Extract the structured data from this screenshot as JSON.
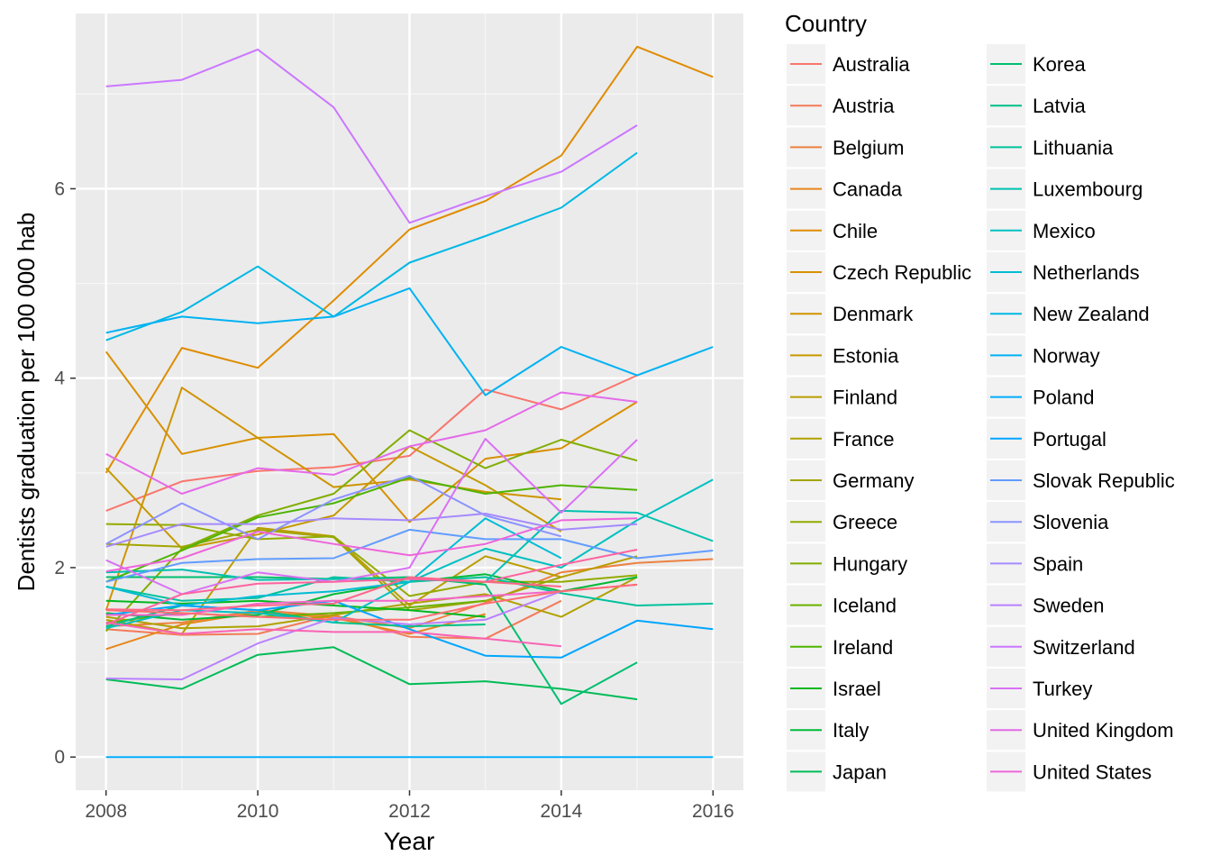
{
  "chart_data": {
    "type": "line",
    "title": "",
    "xlabel": "Year",
    "ylabel": "Dentists graduation per 100 000 hab",
    "xlim": [
      2007.6,
      2016.4
    ],
    "ylim": [
      -0.35,
      7.85
    ],
    "x_ticks": [
      2008,
      2010,
      2012,
      2014,
      2016
    ],
    "y_ticks": [
      0,
      2,
      4,
      6
    ],
    "x_tick_labels": [
      "2008",
      "2010",
      "2012",
      "2014",
      "2016"
    ],
    "y_tick_labels": [
      "0",
      "2",
      "4",
      "6"
    ],
    "grid": true,
    "legend": {
      "title": "Country",
      "placement": "right",
      "columns": 2
    },
    "x": [
      2008,
      2009,
      2010,
      2011,
      2012,
      2013,
      2014,
      2015,
      2016
    ],
    "series": [
      {
        "name": "Australia",
        "color": "#F8766D",
        "values": [
          2.6,
          2.91,
          3.02,
          3.06,
          3.18,
          3.88,
          3.67,
          4.03,
          null
        ]
      },
      {
        "name": "Austria",
        "color": "#F37B59",
        "values": [
          1.35,
          1.29,
          1.3,
          1.5,
          1.27,
          1.25,
          1.65,
          null,
          null
        ]
      },
      {
        "name": "Belgium",
        "color": "#ED8141",
        "values": [
          1.38,
          1.42,
          1.55,
          1.49,
          1.36,
          1.63,
          1.95,
          2.05,
          2.09
        ]
      },
      {
        "name": "Canada",
        "color": "#E7861B",
        "values": [
          1.14,
          1.4,
          1.53,
          1.47,
          1.3,
          1.51,
          null,
          null,
          null
        ]
      },
      {
        "name": "Chile",
        "color": "#DF8C00",
        "values": [
          3.0,
          4.32,
          4.11,
          4.82,
          5.57,
          5.87,
          6.35,
          7.5,
          7.18
        ]
      },
      {
        "name": "Czech Republic",
        "color": "#D89000",
        "values": [
          4.28,
          3.2,
          3.37,
          3.41,
          2.48,
          3.15,
          3.26,
          3.75,
          null
        ]
      },
      {
        "name": "Denmark",
        "color": "#CF9400",
        "values": [
          1.55,
          3.9,
          3.37,
          2.85,
          2.93,
          2.8,
          2.72,
          null,
          null
        ]
      },
      {
        "name": "Estonia",
        "color": "#C59900",
        "values": [
          3.05,
          2.2,
          2.35,
          2.55,
          3.28,
          2.87,
          2.38,
          null,
          null
        ]
      },
      {
        "name": "Finland",
        "color": "#BB9D00",
        "values": [
          1.45,
          1.3,
          2.42,
          2.33,
          1.6,
          2.12,
          1.9,
          2.12,
          null
        ]
      },
      {
        "name": "France",
        "color": "#B0A100",
        "values": [
          1.48,
          1.36,
          1.38,
          1.5,
          1.62,
          1.72,
          1.48,
          1.9,
          null
        ]
      },
      {
        "name": "Germany",
        "color": "#A3A500",
        "values": [
          2.25,
          2.22,
          2.4,
          2.32,
          1.55,
          1.65,
          1.9,
          null,
          null
        ]
      },
      {
        "name": "Greece",
        "color": "#93AA00",
        "values": [
          2.46,
          2.45,
          2.3,
          2.33,
          1.7,
          1.85,
          1.85,
          1.92,
          null
        ]
      },
      {
        "name": "Hungary",
        "color": "#81AD00",
        "values": [
          1.33,
          2.2,
          2.55,
          2.78,
          3.45,
          3.05,
          3.35,
          3.13,
          null
        ]
      },
      {
        "name": "Iceland",
        "color": "#6BB100",
        "values": [
          1.42,
          1.52,
          1.48,
          1.52,
          1.58,
          1.65,
          null,
          null,
          null
        ]
      },
      {
        "name": "Ireland",
        "color": "#4EB400",
        "values": [
          1.85,
          2.18,
          2.53,
          2.68,
          2.95,
          2.78,
          2.87,
          2.82,
          null
        ]
      },
      {
        "name": "Israel",
        "color": "#00B81F",
        "values": [
          1.65,
          1.62,
          1.65,
          1.6,
          1.55,
          1.48,
          null,
          null,
          null
        ]
      },
      {
        "name": "Italy",
        "color": "#00BA38",
        "values": [
          1.52,
          1.45,
          1.5,
          1.72,
          1.85,
          1.93,
          1.75,
          1.9,
          null
        ]
      },
      {
        "name": "Japan",
        "color": "#00BC56",
        "values": [
          0.82,
          0.72,
          1.08,
          1.16,
          0.77,
          0.8,
          0.72,
          0.61,
          null
        ]
      },
      {
        "name": "Korea",
        "color": "#00BE70",
        "values": [
          1.9,
          1.9,
          1.9,
          1.88,
          1.9,
          1.82,
          0.56,
          1.0,
          null
        ]
      },
      {
        "name": "Latvia",
        "color": "#00C087",
        "values": [
          1.38,
          1.6,
          1.55,
          1.42,
          1.38,
          1.4,
          null,
          null,
          null
        ]
      },
      {
        "name": "Lithuania",
        "color": "#00C19C",
        "values": [
          1.8,
          1.65,
          1.68,
          1.9,
          1.85,
          1.9,
          1.73,
          1.6,
          1.62
        ]
      },
      {
        "name": "Luxembourg",
        "color": "#00C1AF",
        "values": [
          1.95,
          1.98,
          1.87,
          1.88,
          1.88,
          1.85,
          2.6,
          2.58,
          2.28
        ]
      },
      {
        "name": "Mexico",
        "color": "#00C0C1",
        "values": [
          1.36,
          1.55,
          1.52,
          1.42,
          1.85,
          2.2,
          2.0,
          2.5,
          2.93
        ]
      },
      {
        "name": "Netherlands",
        "color": "#00BCD5",
        "values": [
          1.8,
          1.6,
          1.7,
          1.75,
          1.85,
          2.52,
          2.1,
          null,
          null
        ]
      },
      {
        "name": "New Zealand",
        "color": "#00B8E5",
        "values": [
          4.4,
          4.7,
          5.18,
          4.65,
          5.22,
          5.5,
          5.8,
          6.38,
          null
        ]
      },
      {
        "name": "Norway",
        "color": "#00B2F3",
        "values": [
          4.48,
          4.65,
          4.58,
          4.65,
          4.95,
          3.82,
          4.33,
          4.03,
          4.33
        ]
      },
      {
        "name": "Poland",
        "color": "#00ABFD",
        "values": [
          0.0,
          0.0,
          0.0,
          0.0,
          0.0,
          0.0,
          0.0,
          0.0,
          0.0
        ]
      },
      {
        "name": "Portugal",
        "color": "#00A5FF",
        "values": [
          1.5,
          1.6,
          1.55,
          1.65,
          1.35,
          1.07,
          1.05,
          1.44,
          1.35
        ]
      },
      {
        "name": "Slovak Republic",
        "color": "#619CFF",
        "values": [
          1.85,
          2.05,
          2.09,
          2.1,
          2.4,
          2.3,
          2.3,
          2.1,
          2.18
        ]
      },
      {
        "name": "Slovenia",
        "color": "#8B93FF",
        "values": [
          2.25,
          2.68,
          2.3,
          2.72,
          2.97,
          2.55,
          2.33,
          null,
          null
        ]
      },
      {
        "name": "Spain",
        "color": "#A58AFF",
        "values": [
          2.22,
          2.46,
          2.46,
          2.52,
          2.5,
          2.57,
          2.4,
          2.46,
          null
        ]
      },
      {
        "name": "Sweden",
        "color": "#BA80FF",
        "values": [
          0.83,
          0.82,
          1.2,
          1.47,
          1.4,
          1.45,
          1.75,
          null,
          null
        ]
      },
      {
        "name": "Switzerland",
        "color": "#CB77FF",
        "values": [
          7.08,
          7.15,
          7.47,
          6.86,
          5.64,
          5.92,
          6.18,
          6.67,
          null
        ]
      },
      {
        "name": "Turkey",
        "color": "#D970F5",
        "values": [
          2.08,
          1.72,
          1.95,
          1.85,
          2.0,
          3.36,
          2.58,
          3.35,
          null
        ]
      },
      {
        "name": "United Kingdom",
        "color": "#E46AE9",
        "values": [
          3.2,
          2.78,
          3.05,
          2.98,
          3.28,
          3.45,
          3.85,
          3.75,
          null
        ]
      },
      {
        "name": "United States",
        "color": "#EE66DA",
        "values": [
          1.96,
          2.1,
          2.38,
          2.25,
          2.13,
          2.25,
          2.5,
          2.52,
          null
        ]
      },
      {
        "name": "",
        "color": "#F564C8",
        "values": [
          1.5,
          1.5,
          1.62,
          1.65,
          1.65,
          1.7,
          1.75,
          1.82,
          null
        ]
      },
      {
        "name": "",
        "color": "#FA63B4",
        "values": [
          1.42,
          1.3,
          1.35,
          1.32,
          1.32,
          1.25,
          1.17,
          null,
          null
        ]
      },
      {
        "name": "",
        "color": "#FE639F",
        "values": [
          1.4,
          1.72,
          1.83,
          1.85,
          1.88,
          1.85,
          2.03,
          2.19,
          null
        ]
      },
      {
        "name": "",
        "color": "#FF6689",
        "values": [
          1.56,
          1.55,
          1.6,
          1.62,
          1.9,
          1.85,
          1.8,
          null,
          null
        ]
      },
      {
        "name": "",
        "color": "#FF6C73",
        "values": [
          1.55,
          1.52,
          1.48,
          1.45,
          1.45,
          1.62,
          1.75,
          1.82,
          null
        ]
      }
    ]
  }
}
